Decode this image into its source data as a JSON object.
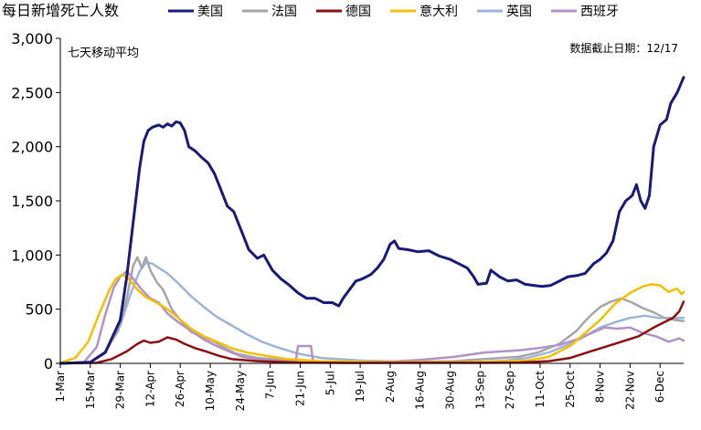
{
  "chart_data": {
    "type": "line",
    "title": "",
    "ylabel": "每日新增死亡人数",
    "xlabel": "",
    "subtitle_left": "七天移动平均",
    "note_right": "数据截止日期：12/17",
    "ylim": [
      0,
      3000
    ],
    "yticks": [
      "0",
      "500",
      "1,000",
      "1,500",
      "2,000",
      "2,500",
      "3,000"
    ],
    "xticks": [
      "1-Mar",
      "15-Mar",
      "29-Mar",
      "12-Apr",
      "26-Apr",
      "10-May",
      "24-May",
      "7-Jun",
      "21-Jun",
      "5-Jul",
      "19-Jul",
      "2-Aug",
      "16-Aug",
      "30-Aug",
      "13-Sep",
      "27-Sep",
      "11-Oct",
      "25-Oct",
      "8-Nov",
      "22-Nov",
      "6-Dec"
    ],
    "legend_position": "top",
    "grid": false,
    "x_start": "2020-03-01",
    "x_end": "2020-12-17",
    "series": [
      {
        "name": "美国",
        "color": "#1a1a7a",
        "width": 3,
        "points": [
          [
            "2020-03-01",
            0
          ],
          [
            "2020-03-15",
            10
          ],
          [
            "2020-03-22",
            100
          ],
          [
            "2020-03-29",
            400
          ],
          [
            "2020-04-01",
            800
          ],
          [
            "2020-04-04",
            1300
          ],
          [
            "2020-04-07",
            1800
          ],
          [
            "2020-04-09",
            2050
          ],
          [
            "2020-04-11",
            2150
          ],
          [
            "2020-04-13",
            2180
          ],
          [
            "2020-04-16",
            2200
          ],
          [
            "2020-04-18",
            2180
          ],
          [
            "2020-04-20",
            2210
          ],
          [
            "2020-04-22",
            2190
          ],
          [
            "2020-04-24",
            2230
          ],
          [
            "2020-04-26",
            2220
          ],
          [
            "2020-04-28",
            2150
          ],
          [
            "2020-04-30",
            2000
          ],
          [
            "2020-05-03",
            1960
          ],
          [
            "2020-05-06",
            1900
          ],
          [
            "2020-05-09",
            1850
          ],
          [
            "2020-05-12",
            1750
          ],
          [
            "2020-05-15",
            1600
          ],
          [
            "2020-05-18",
            1450
          ],
          [
            "2020-05-21",
            1400
          ],
          [
            "2020-05-25",
            1200
          ],
          [
            "2020-05-28",
            1050
          ],
          [
            "2020-06-01",
            970
          ],
          [
            "2020-06-04",
            1000
          ],
          [
            "2020-06-08",
            860
          ],
          [
            "2020-06-12",
            780
          ],
          [
            "2020-06-16",
            720
          ],
          [
            "2020-06-20",
            650
          ],
          [
            "2020-06-24",
            600
          ],
          [
            "2020-06-28",
            600
          ],
          [
            "2020-07-02",
            560
          ],
          [
            "2020-07-06",
            560
          ],
          [
            "2020-07-09",
            530
          ],
          [
            "2020-07-11",
            600
          ],
          [
            "2020-07-14",
            680
          ],
          [
            "2020-07-17",
            760
          ],
          [
            "2020-07-20",
            780
          ],
          [
            "2020-07-24",
            820
          ],
          [
            "2020-07-27",
            880
          ],
          [
            "2020-07-30",
            960
          ],
          [
            "2020-08-02",
            1100
          ],
          [
            "2020-08-04",
            1130
          ],
          [
            "2020-08-06",
            1060
          ],
          [
            "2020-08-10",
            1050
          ],
          [
            "2020-08-15",
            1030
          ],
          [
            "2020-08-20",
            1040
          ],
          [
            "2020-08-25",
            990
          ],
          [
            "2020-08-30",
            960
          ],
          [
            "2020-09-03",
            920
          ],
          [
            "2020-09-07",
            880
          ],
          [
            "2020-09-10",
            800
          ],
          [
            "2020-09-12",
            730
          ],
          [
            "2020-09-16",
            740
          ],
          [
            "2020-09-18",
            860
          ],
          [
            "2020-09-22",
            800
          ],
          [
            "2020-09-26",
            760
          ],
          [
            "2020-09-30",
            770
          ],
          [
            "2020-10-04",
            730
          ],
          [
            "2020-10-08",
            720
          ],
          [
            "2020-10-12",
            710
          ],
          [
            "2020-10-16",
            720
          ],
          [
            "2020-10-20",
            760
          ],
          [
            "2020-10-24",
            800
          ],
          [
            "2020-10-28",
            810
          ],
          [
            "2020-11-01",
            830
          ],
          [
            "2020-11-05",
            920
          ],
          [
            "2020-11-08",
            960
          ],
          [
            "2020-11-11",
            1020
          ],
          [
            "2020-11-14",
            1130
          ],
          [
            "2020-11-17",
            1400
          ],
          [
            "2020-11-20",
            1500
          ],
          [
            "2020-11-23",
            1550
          ],
          [
            "2020-11-25",
            1650
          ],
          [
            "2020-11-27",
            1500
          ],
          [
            "2020-11-29",
            1430
          ],
          [
            "2020-12-01",
            1550
          ],
          [
            "2020-12-03",
            2000
          ],
          [
            "2020-12-06",
            2200
          ],
          [
            "2020-12-09",
            2250
          ],
          [
            "2020-12-11",
            2400
          ],
          [
            "2020-12-14",
            2500
          ],
          [
            "2020-12-17",
            2640
          ]
        ]
      },
      {
        "name": "法国",
        "color": "#a6a6a6",
        "width": 2.5,
        "points": [
          [
            "2020-03-01",
            0
          ],
          [
            "2020-03-15",
            10
          ],
          [
            "2020-03-22",
            110
          ],
          [
            "2020-03-28",
            300
          ],
          [
            "2020-04-01",
            600
          ],
          [
            "2020-04-04",
            900
          ],
          [
            "2020-04-06",
            980
          ],
          [
            "2020-04-08",
            880
          ],
          [
            "2020-04-10",
            980
          ],
          [
            "2020-04-12",
            860
          ],
          [
            "2020-04-15",
            750
          ],
          [
            "2020-04-18",
            680
          ],
          [
            "2020-04-22",
            500
          ],
          [
            "2020-04-26",
            400
          ],
          [
            "2020-05-01",
            290
          ],
          [
            "2020-05-06",
            250
          ],
          [
            "2020-05-12",
            200
          ],
          [
            "2020-05-16",
            150
          ],
          [
            "2020-05-22",
            90
          ],
          [
            "2020-06-01",
            50
          ],
          [
            "2020-06-15",
            30
          ],
          [
            "2020-07-01",
            15
          ],
          [
            "2020-08-01",
            10
          ],
          [
            "2020-09-01",
            20
          ],
          [
            "2020-09-15",
            40
          ],
          [
            "2020-10-01",
            60
          ],
          [
            "2020-10-10",
            100
          ],
          [
            "2020-10-20",
            180
          ],
          [
            "2020-10-28",
            300
          ],
          [
            "2020-11-01",
            390
          ],
          [
            "2020-11-04",
            450
          ],
          [
            "2020-11-08",
            520
          ],
          [
            "2020-11-13",
            570
          ],
          [
            "2020-11-18",
            600
          ],
          [
            "2020-11-23",
            560
          ],
          [
            "2020-11-28",
            510
          ],
          [
            "2020-12-03",
            470
          ],
          [
            "2020-12-08",
            420
          ],
          [
            "2020-12-13",
            400
          ],
          [
            "2020-12-17",
            390
          ]
        ]
      },
      {
        "name": "德国",
        "color": "#8b1010",
        "width": 2.5,
        "points": [
          [
            "2020-03-01",
            0
          ],
          [
            "2020-03-18",
            5
          ],
          [
            "2020-03-25",
            40
          ],
          [
            "2020-04-01",
            110
          ],
          [
            "2020-04-06",
            180
          ],
          [
            "2020-04-09",
            210
          ],
          [
            "2020-04-12",
            190
          ],
          [
            "2020-04-16",
            200
          ],
          [
            "2020-04-20",
            240
          ],
          [
            "2020-04-24",
            220
          ],
          [
            "2020-04-28",
            180
          ],
          [
            "2020-05-03",
            140
          ],
          [
            "2020-05-08",
            110
          ],
          [
            "2020-05-14",
            70
          ],
          [
            "2020-05-20",
            40
          ],
          [
            "2020-06-01",
            20
          ],
          [
            "2020-06-20",
            8
          ],
          [
            "2020-07-15",
            4
          ],
          [
            "2020-08-15",
            5
          ],
          [
            "2020-09-15",
            5
          ],
          [
            "2020-10-01",
            8
          ],
          [
            "2020-10-15",
            20
          ],
          [
            "2020-10-25",
            50
          ],
          [
            "2020-11-02",
            100
          ],
          [
            "2020-11-10",
            150
          ],
          [
            "2020-11-18",
            200
          ],
          [
            "2020-11-26",
            250
          ],
          [
            "2020-12-03",
            330
          ],
          [
            "2020-12-08",
            380
          ],
          [
            "2020-12-12",
            420
          ],
          [
            "2020-12-15",
            480
          ],
          [
            "2020-12-17",
            570
          ]
        ]
      },
      {
        "name": "意大利",
        "color": "#f5c000",
        "width": 2.5,
        "points": [
          [
            "2020-03-01",
            5
          ],
          [
            "2020-03-08",
            50
          ],
          [
            "2020-03-14",
            200
          ],
          [
            "2020-03-19",
            450
          ],
          [
            "2020-03-24",
            680
          ],
          [
            "2020-03-27",
            780
          ],
          [
            "2020-03-30",
            820
          ],
          [
            "2020-04-02",
            780
          ],
          [
            "2020-04-06",
            680
          ],
          [
            "2020-04-10",
            610
          ],
          [
            "2020-04-15",
            560
          ],
          [
            "2020-04-20",
            500
          ],
          [
            "2020-04-25",
            420
          ],
          [
            "2020-05-01",
            320
          ],
          [
            "2020-05-07",
            250
          ],
          [
            "2020-05-13",
            200
          ],
          [
            "2020-05-20",
            140
          ],
          [
            "2020-05-27",
            100
          ],
          [
            "2020-06-05",
            70
          ],
          [
            "2020-06-15",
            40
          ],
          [
            "2020-07-01",
            20
          ],
          [
            "2020-08-01",
            10
          ],
          [
            "2020-09-01",
            10
          ],
          [
            "2020-09-20",
            15
          ],
          [
            "2020-10-05",
            25
          ],
          [
            "2020-10-15",
            60
          ],
          [
            "2020-10-25",
            160
          ],
          [
            "2020-11-01",
            280
          ],
          [
            "2020-11-08",
            400
          ],
          [
            "2020-11-15",
            550
          ],
          [
            "2020-11-22",
            650
          ],
          [
            "2020-11-28",
            710
          ],
          [
            "2020-12-02",
            730
          ],
          [
            "2020-12-06",
            720
          ],
          [
            "2020-12-10",
            660
          ],
          [
            "2020-12-14",
            690
          ],
          [
            "2020-12-16",
            640
          ],
          [
            "2020-12-17",
            660
          ]
        ]
      },
      {
        "name": "英国",
        "color": "#9cb5d8",
        "width": 2.5,
        "points": [
          [
            "2020-03-01",
            0
          ],
          [
            "2020-03-15",
            10
          ],
          [
            "2020-03-22",
            100
          ],
          [
            "2020-03-29",
            350
          ],
          [
            "2020-04-03",
            650
          ],
          [
            "2020-04-07",
            850
          ],
          [
            "2020-04-10",
            930
          ],
          [
            "2020-04-13",
            920
          ],
          [
            "2020-04-16",
            880
          ],
          [
            "2020-04-20",
            830
          ],
          [
            "2020-04-25",
            740
          ],
          [
            "2020-05-01",
            620
          ],
          [
            "2020-05-07",
            520
          ],
          [
            "2020-05-13",
            430
          ],
          [
            "2020-05-20",
            350
          ],
          [
            "2020-05-27",
            270
          ],
          [
            "2020-06-03",
            200
          ],
          [
            "2020-06-10",
            150
          ],
          [
            "2020-06-20",
            90
          ],
          [
            "2020-07-01",
            50
          ],
          [
            "2020-07-20",
            25
          ],
          [
            "2020-08-15",
            12
          ],
          [
            "2020-09-10",
            10
          ],
          [
            "2020-09-25",
            25
          ],
          [
            "2020-10-05",
            50
          ],
          [
            "2020-10-15",
            100
          ],
          [
            "2020-10-25",
            180
          ],
          [
            "2020-11-01",
            250
          ],
          [
            "2020-11-08",
            330
          ],
          [
            "2020-11-15",
            380
          ],
          [
            "2020-11-22",
            420
          ],
          [
            "2020-11-29",
            440
          ],
          [
            "2020-12-05",
            420
          ],
          [
            "2020-12-10",
            420
          ],
          [
            "2020-12-17",
            420
          ]
        ]
      },
      {
        "name": "西班牙",
        "color": "#b292c8",
        "width": 2.5,
        "points": [
          [
            "2020-03-01",
            0
          ],
          [
            "2020-03-12",
            10
          ],
          [
            "2020-03-18",
            150
          ],
          [
            "2020-03-22",
            450
          ],
          [
            "2020-03-26",
            700
          ],
          [
            "2020-03-29",
            800
          ],
          [
            "2020-04-01",
            850
          ],
          [
            "2020-04-04",
            780
          ],
          [
            "2020-04-08",
            680
          ],
          [
            "2020-04-12",
            600
          ],
          [
            "2020-04-16",
            560
          ],
          [
            "2020-04-20",
            460
          ],
          [
            "2020-04-25",
            380
          ],
          [
            "2020-05-01",
            300
          ],
          [
            "2020-05-07",
            220
          ],
          [
            "2020-05-14",
            150
          ],
          [
            "2020-05-20",
            100
          ],
          [
            "2020-05-25",
            60
          ],
          [
            "2020-06-01",
            40
          ],
          [
            "2020-06-15",
            20
          ],
          [
            "2020-06-19",
            30
          ],
          [
            "2020-06-20",
            160
          ],
          [
            "2020-06-26",
            160
          ],
          [
            "2020-06-27",
            20
          ],
          [
            "2020-07-15",
            10
          ],
          [
            "2020-08-01",
            15
          ],
          [
            "2020-08-15",
            30
          ],
          [
            "2020-09-01",
            60
          ],
          [
            "2020-09-15",
            100
          ],
          [
            "2020-10-01",
            120
          ],
          [
            "2020-10-10",
            140
          ],
          [
            "2020-10-20",
            170
          ],
          [
            "2020-10-28",
            220
          ],
          [
            "2020-11-04",
            280
          ],
          [
            "2020-11-10",
            330
          ],
          [
            "2020-11-16",
            320
          ],
          [
            "2020-11-22",
            330
          ],
          [
            "2020-11-28",
            280
          ],
          [
            "2020-12-04",
            250
          ],
          [
            "2020-12-10",
            200
          ],
          [
            "2020-12-15",
            230
          ],
          [
            "2020-12-17",
            210
          ]
        ]
      }
    ]
  }
}
